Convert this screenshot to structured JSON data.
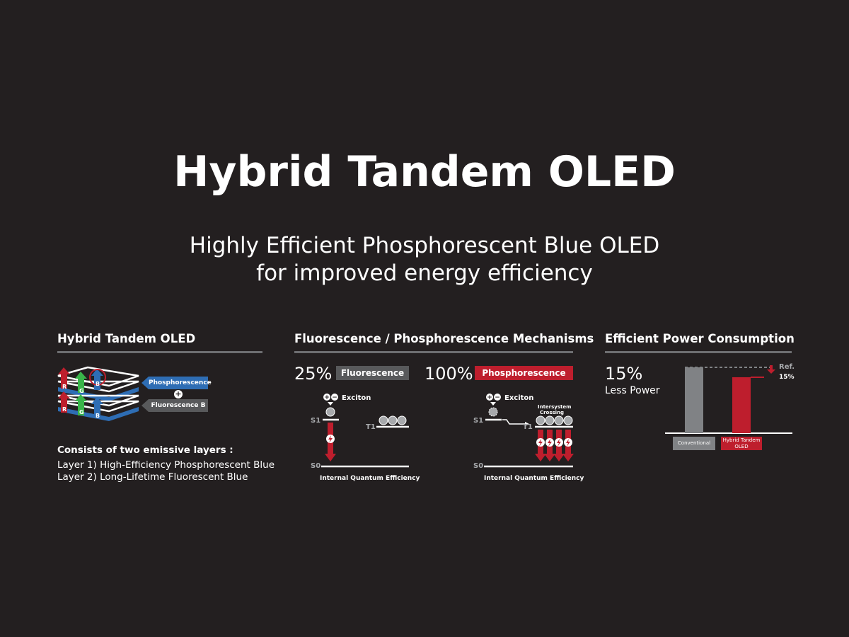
{
  "header": {
    "title": "Hybrid Tandem OLED",
    "subtitle_line1": "Highly Efficient Phosphorescent Blue OLED",
    "subtitle_line2": "for improved energy efficiency"
  },
  "colors": {
    "background": "#231f20",
    "phosphorescence_blue": "#2e6db4",
    "fluorescence_gray": "#58595b",
    "phosphorescence_red": "#be1e2d",
    "rule_gray": "#6d6e71"
  },
  "panel1": {
    "heading": "Hybrid Tandem OLED",
    "layer_letters": [
      "R",
      "G",
      "B"
    ],
    "tag_phos": "Phosphorescence B",
    "tag_fluor": "Fluorescence B",
    "plus": "+",
    "desc_title": "Consists of two emissive layers :",
    "layer1": "Layer 1) High-Efficiency Phosphorescent Blue",
    "layer2": "Layer 2) Long-Lifetime Fluorescent Blue"
  },
  "panel2": {
    "heading": "Fluorescence / Phosphorescence Mechanisms",
    "fluor": {
      "percent": "25%",
      "tag": "Fluorescence",
      "exciton": "Exciton",
      "s1": "S1",
      "t1": "T1",
      "s0": "S0",
      "caption": "Internal Quantum Efficiency"
    },
    "phos": {
      "percent": "100%",
      "tag": "Phosphorescence",
      "exciton": "Exciton",
      "isc_line1": "Intersystem",
      "isc_line2": "Crossing",
      "s1": "S1",
      "t1": "T1",
      "s0": "S0",
      "caption": "Internal Quantum Efficiency"
    }
  },
  "panel3": {
    "heading": "Efficient Power Consumption",
    "percent": "15%",
    "less_power": "Less Power",
    "ref_label": "Ref.",
    "ref_value": "15%",
    "chart_data": {
      "type": "bar",
      "categories": [
        "Conventional",
        "Hybrid Tandem OLED"
      ],
      "values": [
        100,
        85
      ],
      "ylim": [
        0,
        100
      ],
      "colors": [
        "#808285",
        "#be1e2d"
      ]
    }
  }
}
